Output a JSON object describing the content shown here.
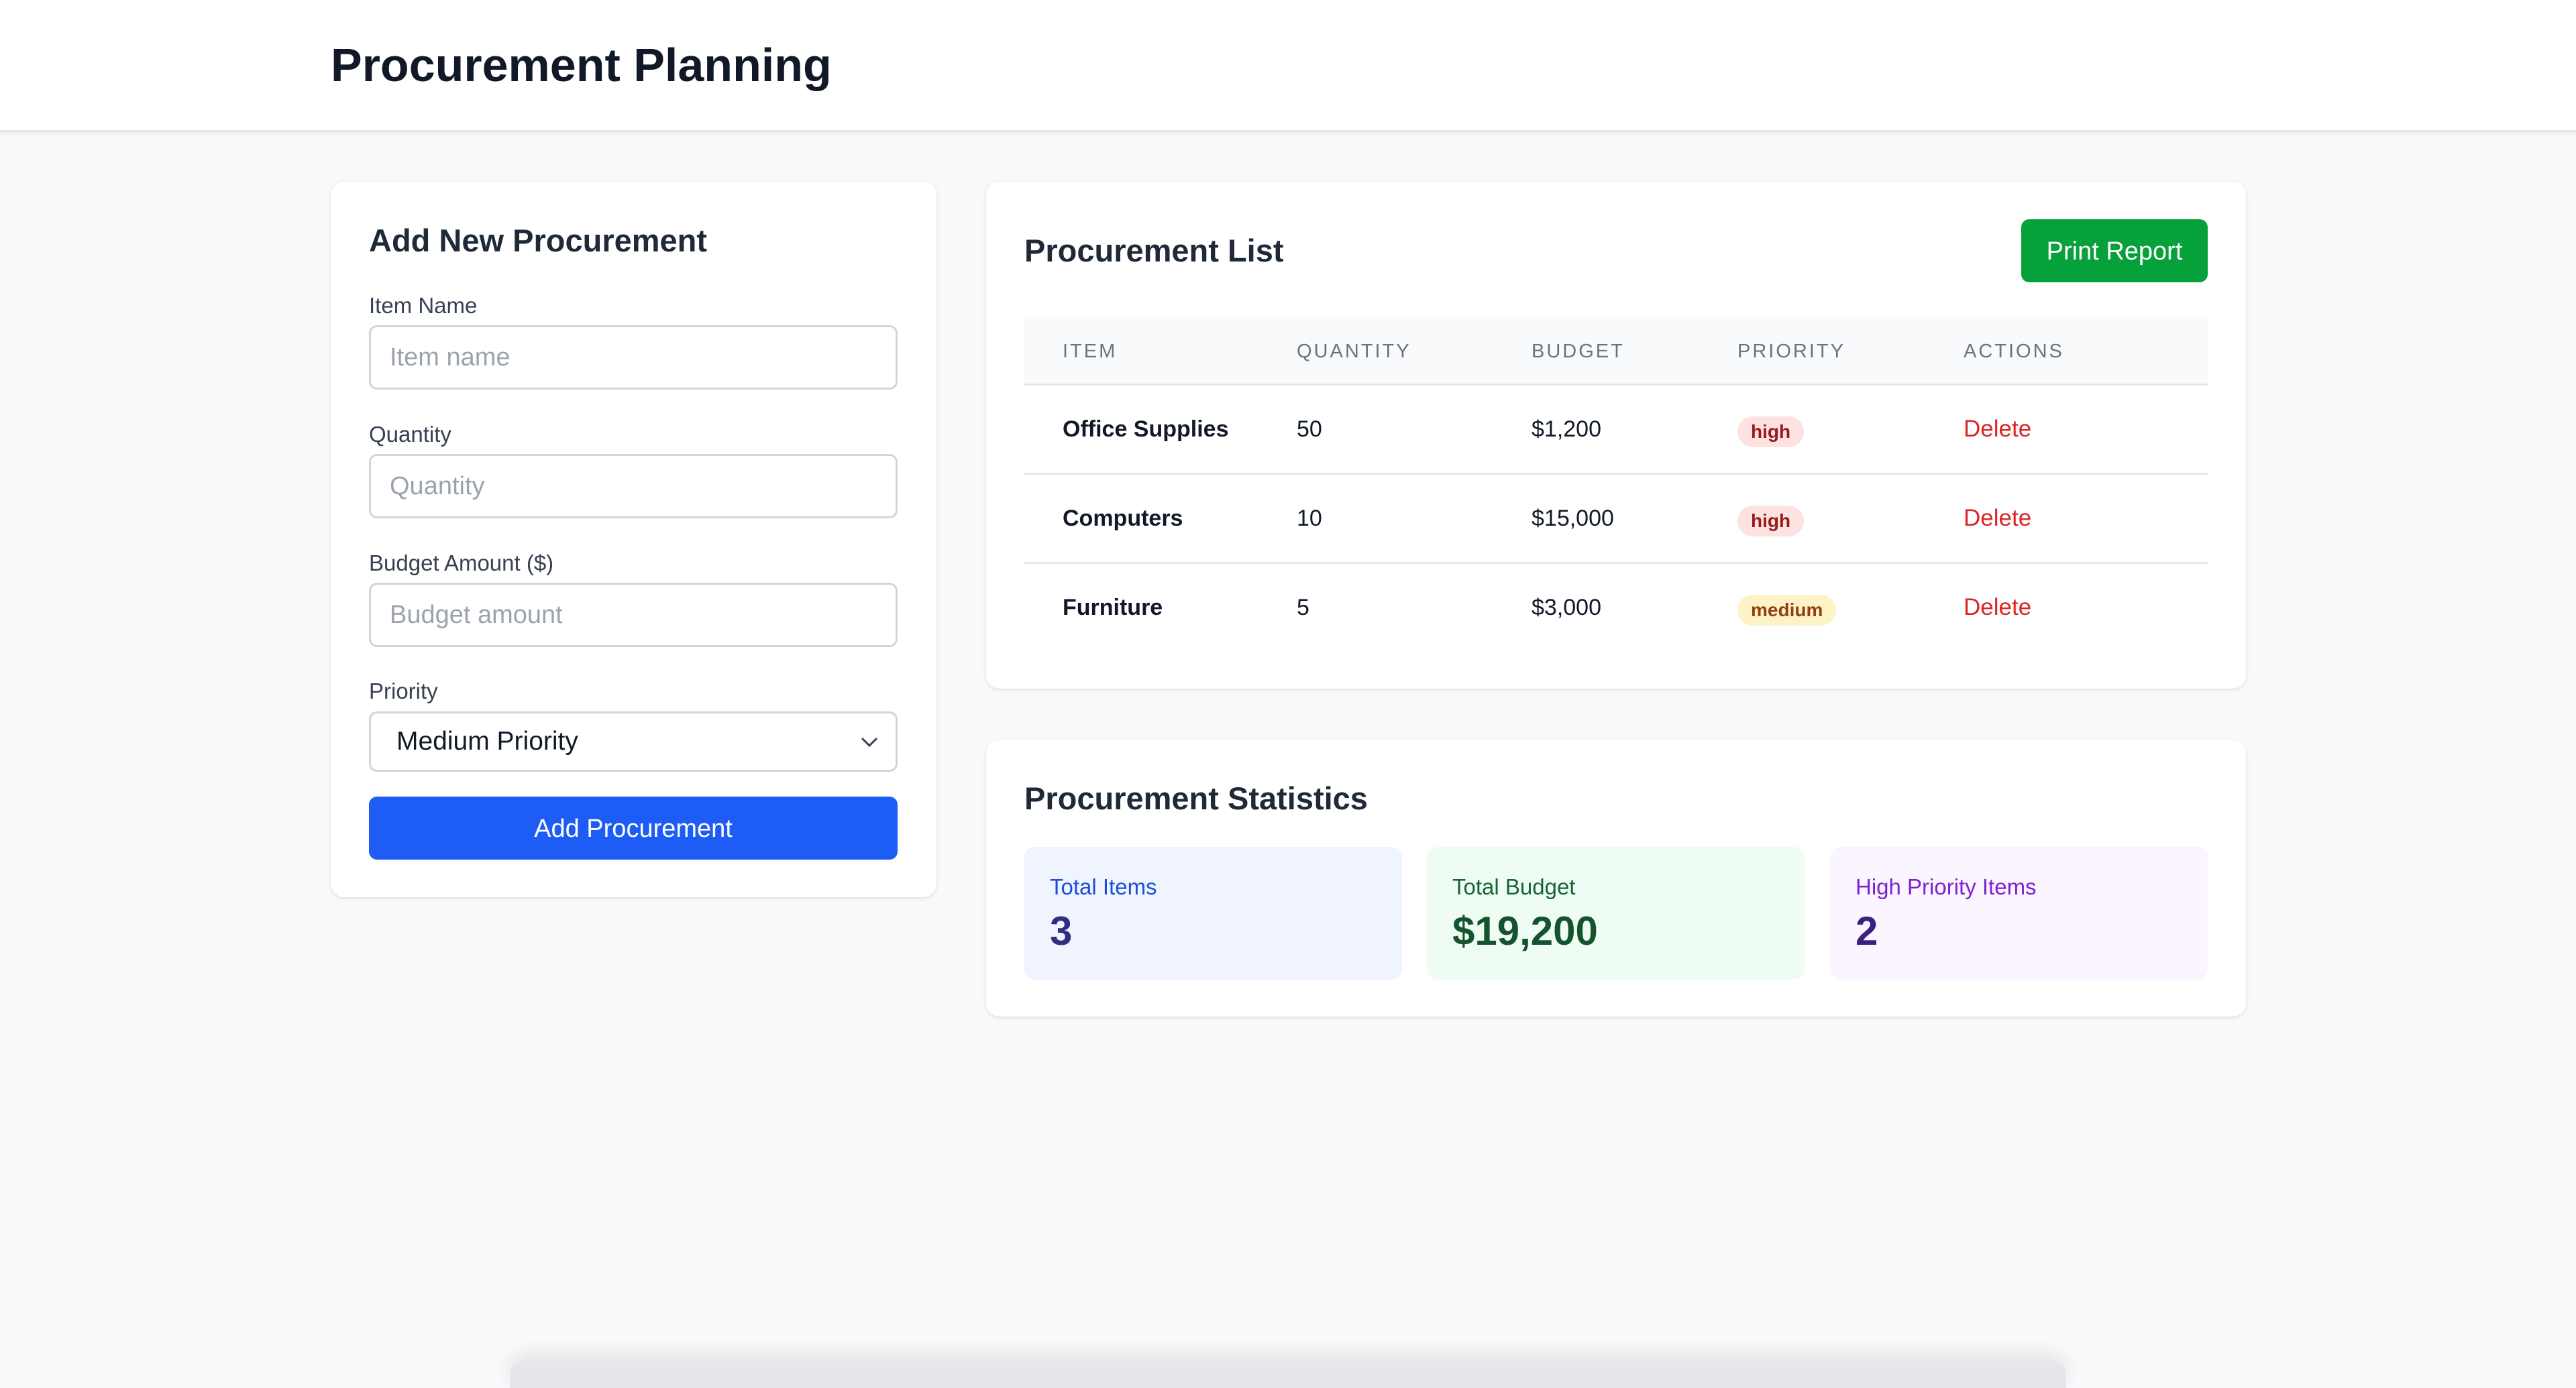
{
  "header": {
    "title": "Procurement Planning"
  },
  "form": {
    "title": "Add New Procurement",
    "item_name": {
      "label": "Item Name",
      "placeholder": "Item name",
      "value": ""
    },
    "quantity": {
      "label": "Quantity",
      "placeholder": "Quantity",
      "value": ""
    },
    "budget": {
      "label": "Budget Amount ($)",
      "placeholder": "Budget amount",
      "value": ""
    },
    "priority": {
      "label": "Priority",
      "selected": "Medium Priority",
      "icon": "chevron-down-icon"
    },
    "submit_label": "Add Procurement"
  },
  "list": {
    "title": "Procurement List",
    "print_label": "Print Report",
    "columns": [
      "ITEM",
      "QUANTITY",
      "BUDGET",
      "PRIORITY",
      "ACTIONS"
    ],
    "rows": [
      {
        "item": "Office Supplies",
        "quantity": "50",
        "budget": "$1,200",
        "priority": "high",
        "action": "Delete"
      },
      {
        "item": "Computers",
        "quantity": "10",
        "budget": "$15,000",
        "priority": "high",
        "action": "Delete"
      },
      {
        "item": "Furniture",
        "quantity": "5",
        "budget": "$3,000",
        "priority": "medium",
        "action": "Delete"
      }
    ]
  },
  "stats": {
    "title": "Procurement Statistics",
    "total_items": {
      "label": "Total Items",
      "value": "3"
    },
    "total_budget": {
      "label": "Total Budget",
      "value": "$19,200"
    },
    "high_priority": {
      "label": "High Priority Items",
      "value": "2"
    }
  },
  "colors": {
    "primary": "#1d5cf5",
    "success": "#07a13c",
    "danger": "#dc2626",
    "badge_high_bg": "#fee2e2",
    "badge_medium_bg": "#fef3c7"
  }
}
